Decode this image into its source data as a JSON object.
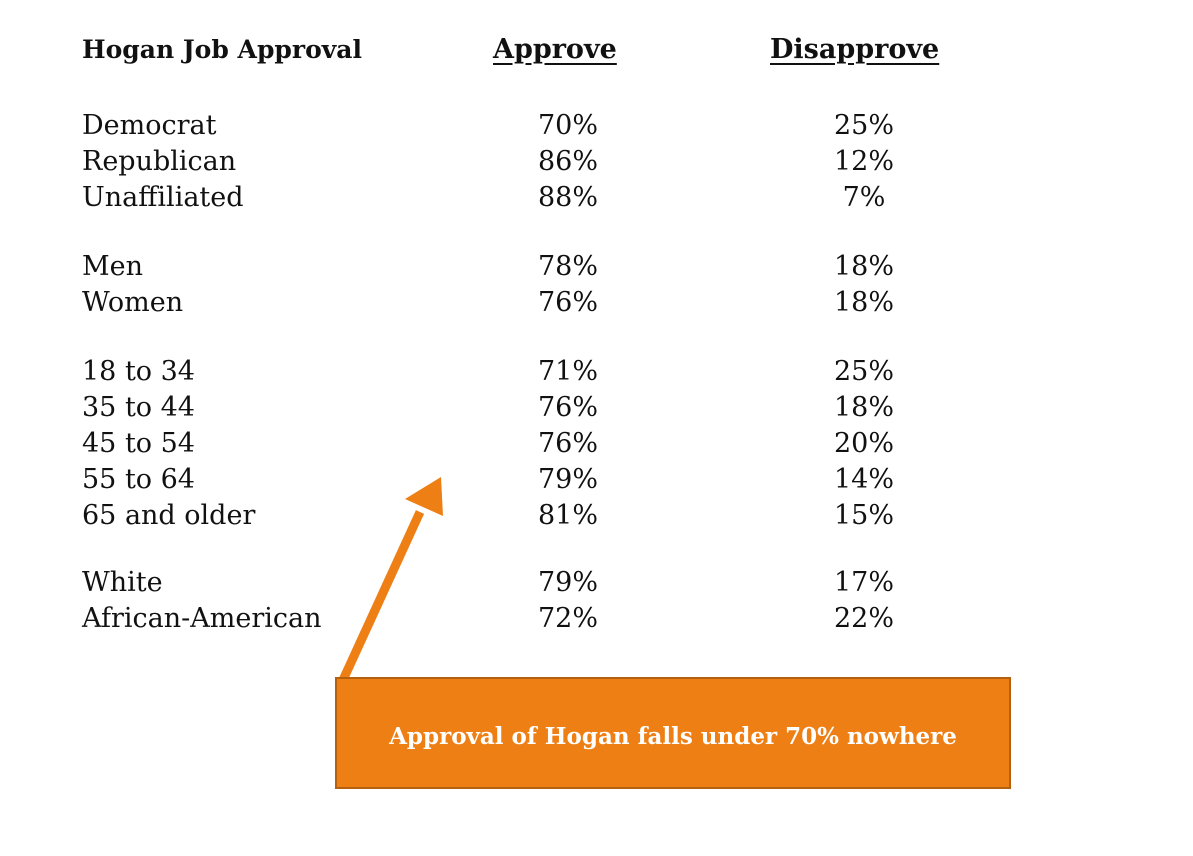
{
  "table": {
    "title": "Hogan Job Approval",
    "approve_header": "Approve",
    "disapprove_header": "Disapprove",
    "groups": [
      {
        "rows": [
          {
            "label": "Democrat",
            "approve": "70%",
            "disapprove": "25%"
          },
          {
            "label": "Republican",
            "approve": "86%",
            "disapprove": "12%"
          },
          {
            "label": "Unaffiliated",
            "approve": "88%",
            "disapprove": "7%"
          }
        ]
      },
      {
        "rows": [
          {
            "label": "Men",
            "approve": "78%",
            "disapprove": "18%"
          },
          {
            "label": "Women",
            "approve": "76%",
            "disapprove": "18%"
          }
        ]
      },
      {
        "rows": [
          {
            "label": "18 to 34",
            "approve": "71%",
            "disapprove": "25%"
          },
          {
            "label": "35 to 44",
            "approve": "76%",
            "disapprove": "18%"
          },
          {
            "label": "45 to 54",
            "approve": "76%",
            "disapprove": "20%"
          },
          {
            "label": "55 to 64",
            "approve": "79%",
            "disapprove": "14%"
          },
          {
            "label": "65 and older",
            "approve": "81%",
            "disapprove": "15%"
          }
        ]
      },
      {
        "rows": [
          {
            "label": "White",
            "approve": "79%",
            "disapprove": "17%"
          },
          {
            "label": "African-American",
            "approve": "72%",
            "disapprove": "22%"
          }
        ]
      }
    ]
  },
  "callout": {
    "text": "Approval of Hogan falls under 70% nowhere",
    "color": "#ee7f15"
  }
}
